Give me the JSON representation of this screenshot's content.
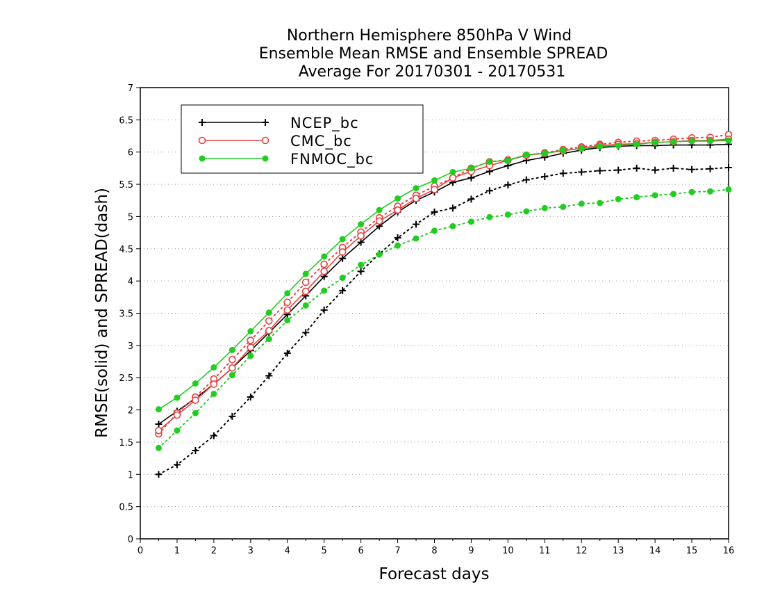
{
  "chart_data": {
    "type": "line",
    "title": [
      "Northern Hemisphere 850hPa V Wind",
      "Ensemble Mean RMSE and Ensemble SPREAD",
      "Average For 20170301 - 20170531"
    ],
    "xlabel": "Forecast days",
    "ylabel": "RMSE(solid) and SPREAD(dash)",
    "xlim": [
      0,
      16
    ],
    "ylim": [
      0,
      7
    ],
    "xticks": [
      "0",
      "1",
      "2",
      "3",
      "4",
      "5",
      "6",
      "7",
      "8",
      "9",
      "10",
      "11",
      "12",
      "13",
      "14",
      "15",
      "16"
    ],
    "yticks": [
      "0",
      "0.5",
      "1",
      "1.5",
      "2",
      "2.5",
      "3",
      "3.5",
      "4",
      "4.5",
      "5",
      "5.5",
      "6",
      "6.5",
      "7"
    ],
    "grid": "horizontal dotted",
    "legend_position": "top-left",
    "x": [
      0.5,
      1,
      1.5,
      2,
      2.5,
      3,
      3.5,
      4,
      4.5,
      5,
      5.5,
      6,
      6.5,
      7,
      7.5,
      8,
      8.5,
      9,
      9.5,
      10,
      10.5,
      11,
      11.5,
      12,
      12.5,
      13,
      13.5,
      14,
      14.5,
      15,
      15.5,
      16
    ],
    "series": [
      {
        "name": "NCEP_bc",
        "color": "#000000",
        "marker": "plus",
        "rmse": [
          1.78,
          1.98,
          2.18,
          2.4,
          2.65,
          2.92,
          3.2,
          3.48,
          3.77,
          4.07,
          4.35,
          4.6,
          4.85,
          5.07,
          5.25,
          5.38,
          5.53,
          5.6,
          5.7,
          5.79,
          5.87,
          5.92,
          5.98,
          6.03,
          6.07,
          6.09,
          6.1,
          6.1,
          6.11,
          6.11,
          6.11,
          6.12
        ],
        "spread": [
          1.0,
          1.15,
          1.37,
          1.6,
          1.9,
          2.2,
          2.53,
          2.88,
          3.2,
          3.55,
          3.85,
          4.15,
          4.42,
          4.67,
          4.88,
          5.07,
          5.13,
          5.27,
          5.4,
          5.49,
          5.57,
          5.62,
          5.67,
          5.69,
          5.71,
          5.72,
          5.75,
          5.72,
          5.75,
          5.73,
          5.74,
          5.76
        ]
      },
      {
        "name": "CMC_bc",
        "color": "#e84040",
        "marker": "open-circle",
        "rmse": [
          1.68,
          1.92,
          2.15,
          2.4,
          2.65,
          2.97,
          3.23,
          3.55,
          3.84,
          4.15,
          4.45,
          4.7,
          4.93,
          5.1,
          5.28,
          5.42,
          5.6,
          5.7,
          5.79,
          5.87,
          5.95,
          5.98,
          6.02,
          6.06,
          6.1,
          6.12,
          6.13,
          6.15,
          6.16,
          6.18,
          6.18,
          6.2
        ],
        "spread": [
          1.63,
          1.95,
          2.2,
          2.48,
          2.78,
          3.08,
          3.38,
          3.67,
          3.98,
          4.26,
          4.52,
          4.76,
          4.98,
          5.16,
          5.33,
          5.47,
          5.6,
          5.75,
          5.85,
          5.88,
          5.95,
          5.99,
          6.04,
          6.08,
          6.12,
          6.15,
          6.17,
          6.18,
          6.2,
          6.22,
          6.23,
          6.27
        ]
      },
      {
        "name": "FNMOC_bc",
        "color": "#22cc22",
        "marker": "filled-circle",
        "rmse": [
          2.01,
          2.19,
          2.41,
          2.66,
          2.93,
          3.22,
          3.51,
          3.81,
          4.11,
          4.38,
          4.65,
          4.88,
          5.1,
          5.28,
          5.44,
          5.56,
          5.69,
          5.75,
          5.85,
          5.87,
          5.96,
          5.98,
          6.03,
          6.05,
          6.09,
          6.1,
          6.12,
          6.15,
          6.16,
          6.17,
          6.17,
          6.18
        ],
        "spread": [
          1.41,
          1.68,
          1.95,
          2.25,
          2.54,
          2.84,
          3.1,
          3.39,
          3.62,
          3.85,
          4.05,
          4.25,
          4.41,
          4.55,
          4.66,
          4.78,
          4.85,
          4.92,
          4.99,
          5.03,
          5.08,
          5.13,
          5.15,
          5.2,
          5.21,
          5.27,
          5.3,
          5.33,
          5.35,
          5.38,
          5.39,
          5.42
        ]
      }
    ]
  }
}
